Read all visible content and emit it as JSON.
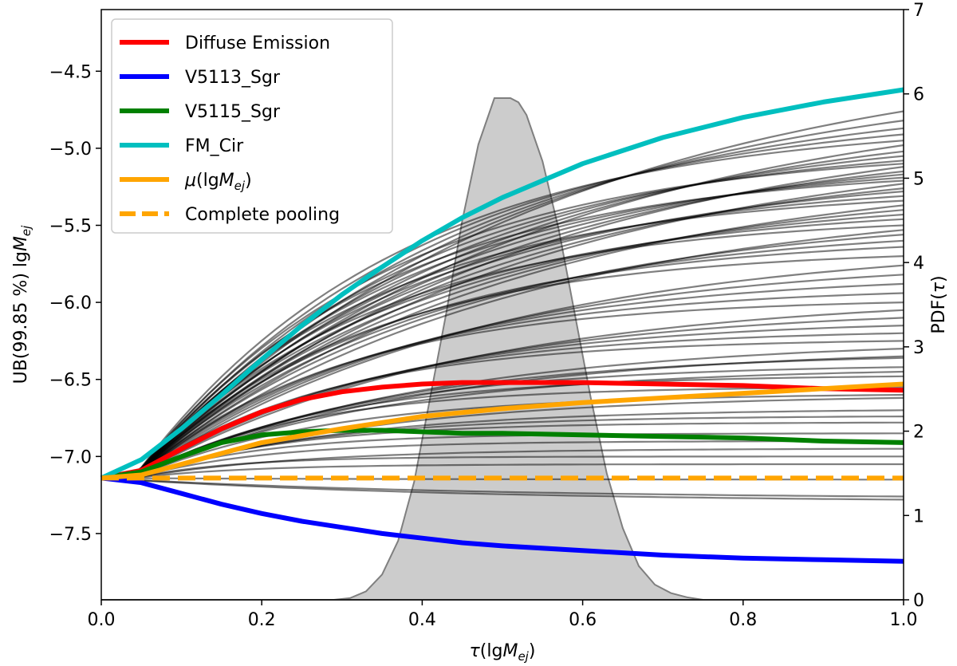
{
  "chart_data": {
    "type": "line",
    "xlabel": "τ(lgM_ej)",
    "ylabel_left": "UB(99.85 %) lgM_ej",
    "ylabel_right": "PDF(τ)",
    "xlim": [
      0.0,
      1.0
    ],
    "ylim_left": [
      -7.93,
      -4.1
    ],
    "ylim_right": [
      0,
      7
    ],
    "x_ticks": [
      0.0,
      0.2,
      0.4,
      0.6,
      0.8,
      1.0
    ],
    "x_tick_labels": [
      "0.0",
      "0.2",
      "0.4",
      "0.6",
      "0.8",
      "1.0"
    ],
    "y_left_ticks": [
      -4.5,
      -5.0,
      -5.5,
      -6.0,
      -6.5,
      -7.0,
      -7.5
    ],
    "y_left_tick_labels": [
      "−4.5",
      "−5.0",
      "−5.5",
      "−6.0",
      "−6.5",
      "−7.0",
      "−7.5"
    ],
    "y_right_ticks": [
      0,
      1,
      2,
      3,
      4,
      5,
      6,
      7
    ],
    "y_right_tick_labels": [
      "0",
      "1",
      "2",
      "3",
      "4",
      "5",
      "6",
      "7"
    ],
    "legend_placement": "top-left",
    "legend": [
      {
        "label": "Diffuse Emission",
        "color": "#ff0000",
        "style": "solid"
      },
      {
        "label": "V5113_Sgr",
        "color": "#0000ff",
        "style": "solid"
      },
      {
        "label": "V5115_Sgr",
        "color": "#008000",
        "style": "solid"
      },
      {
        "label": "FM_Cir",
        "color": "#00bfbf",
        "style": "solid"
      },
      {
        "label": "μ(lgM_ej)",
        "color": "#ffa500",
        "style": "solid"
      },
      {
        "label": "Complete pooling",
        "color": "#ffa500",
        "style": "dashed"
      }
    ],
    "series": [
      {
        "name": "Diffuse Emission",
        "color": "#ff0000",
        "x": [
          0.0,
          0.05,
          0.1,
          0.15,
          0.2,
          0.25,
          0.3,
          0.35,
          0.4,
          0.45,
          0.5,
          0.6,
          0.7,
          0.8,
          0.9,
          1.0
        ],
        "y": [
          -7.14,
          -7.09,
          -6.95,
          -6.82,
          -6.71,
          -6.63,
          -6.58,
          -6.55,
          -6.53,
          -6.52,
          -6.52,
          -6.52,
          -6.53,
          -6.54,
          -6.56,
          -6.57
        ]
      },
      {
        "name": "V5113_Sgr",
        "color": "#0000ff",
        "x": [
          0.0,
          0.05,
          0.1,
          0.15,
          0.2,
          0.25,
          0.3,
          0.35,
          0.4,
          0.45,
          0.5,
          0.6,
          0.7,
          0.8,
          0.9,
          1.0
        ],
        "y": [
          -7.14,
          -7.17,
          -7.24,
          -7.31,
          -7.37,
          -7.42,
          -7.46,
          -7.5,
          -7.53,
          -7.56,
          -7.58,
          -7.61,
          -7.64,
          -7.66,
          -7.67,
          -7.68
        ]
      },
      {
        "name": "V5115_Sgr",
        "color": "#008000",
        "x": [
          0.0,
          0.05,
          0.1,
          0.15,
          0.2,
          0.25,
          0.3,
          0.35,
          0.4,
          0.45,
          0.5,
          0.6,
          0.7,
          0.8,
          0.9,
          1.0
        ],
        "y": [
          -7.14,
          -7.1,
          -7.0,
          -6.91,
          -6.86,
          -6.84,
          -6.83,
          -6.83,
          -6.84,
          -6.85,
          -6.85,
          -6.86,
          -6.87,
          -6.88,
          -6.9,
          -6.91
        ]
      },
      {
        "name": "FM_Cir",
        "color": "#00bfbf",
        "x": [
          0.0,
          0.05,
          0.1,
          0.15,
          0.2,
          0.25,
          0.3,
          0.35,
          0.4,
          0.45,
          0.5,
          0.6,
          0.7,
          0.8,
          0.9,
          1.0
        ],
        "y": [
          -7.14,
          -7.02,
          -6.82,
          -6.6,
          -6.37,
          -6.15,
          -5.95,
          -5.77,
          -5.6,
          -5.45,
          -5.32,
          -5.1,
          -4.93,
          -4.8,
          -4.7,
          -4.62
        ]
      },
      {
        "name": "μ(lgM_ej)",
        "color": "#ffa500",
        "x": [
          0.0,
          0.05,
          0.1,
          0.15,
          0.2,
          0.3,
          0.4,
          0.5,
          0.6,
          0.7,
          0.8,
          0.9,
          1.0
        ],
        "y": [
          -7.14,
          -7.12,
          -7.05,
          -6.98,
          -6.91,
          -6.82,
          -6.74,
          -6.69,
          -6.65,
          -6.62,
          -6.59,
          -6.56,
          -6.53
        ]
      },
      {
        "name": "Complete pooling",
        "color": "#ffa500",
        "dashed": true,
        "x": [
          0.0,
          1.0
        ],
        "y": [
          -7.14,
          -7.14
        ]
      }
    ],
    "individual_curves": {
      "count": 60,
      "color": "#000000",
      "start_value": -7.14,
      "end_values_at_tau_1": [
        -4.76,
        -4.82,
        -4.87,
        -4.91,
        -4.95,
        -4.98,
        -5.02,
        -5.05,
        -5.08,
        -5.1,
        -5.12,
        -5.15,
        -5.17,
        -5.19,
        -5.21,
        -5.23,
        -5.26,
        -5.28,
        -5.31,
        -5.34,
        -5.37,
        -5.4,
        -5.43,
        -5.46,
        -5.5,
        -5.53,
        -5.56,
        -5.6,
        -5.64,
        -5.7,
        -5.76,
        -5.82,
        -5.88,
        -5.94,
        -6.0,
        -6.05,
        -6.1,
        -6.15,
        -6.2,
        -6.25,
        -6.3,
        -6.36,
        -6.42,
        -6.48,
        -6.55,
        -6.62,
        -6.7,
        -6.74,
        -6.78,
        -6.85,
        -6.95,
        -7.05,
        -7.15,
        -7.26,
        -7.28,
        -6.35,
        -6.45,
        -6.6,
        -6.9,
        -7.0
      ]
    },
    "pdf_tau": {
      "color": "#bfbfbf",
      "x": [
        0.0,
        0.29,
        0.31,
        0.33,
        0.35,
        0.37,
        0.39,
        0.41,
        0.43,
        0.45,
        0.47,
        0.49,
        0.5,
        0.51,
        0.52,
        0.53,
        0.55,
        0.57,
        0.59,
        0.61,
        0.63,
        0.65,
        0.67,
        0.69,
        0.71,
        0.73,
        0.75,
        1.0
      ],
      "y": [
        0.0,
        0.0,
        0.02,
        0.1,
        0.3,
        0.7,
        1.4,
        2.4,
        3.4,
        4.5,
        5.4,
        5.95,
        5.95,
        5.95,
        5.9,
        5.75,
        5.2,
        4.4,
        3.4,
        2.4,
        1.5,
        0.85,
        0.4,
        0.18,
        0.08,
        0.03,
        0.0,
        0.0
      ]
    }
  }
}
